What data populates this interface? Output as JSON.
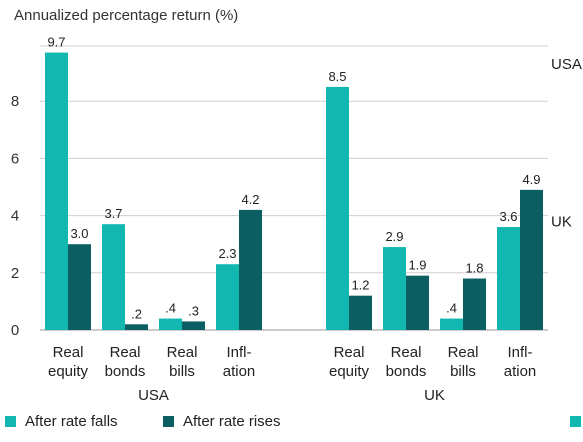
{
  "chart_data": {
    "type": "bar",
    "ylabel": "Annualized percentage return (%)",
    "ylim": [
      0,
      10
    ],
    "yticks": [
      0,
      2,
      4,
      6,
      8
    ],
    "grid": true,
    "legend_position": "bottom-left",
    "colors": {
      "falls": "#12B8B0",
      "rises": "#0B5F63"
    },
    "series": [
      {
        "name": "After rate falls",
        "key": "falls"
      },
      {
        "name": "After rate rises",
        "key": "rises"
      }
    ],
    "groups": [
      {
        "name": "USA",
        "categories": [
          {
            "lines": [
              "Real",
              "equity"
            ],
            "falls": 9.7,
            "rises": 3.0,
            "falls_label": "9.7",
            "rises_label": "3.0"
          },
          {
            "lines": [
              "Real",
              "bonds"
            ],
            "falls": 3.7,
            "rises": 0.2,
            "falls_label": "3.7",
            "rises_label": ".2"
          },
          {
            "lines": [
              "Real",
              "bills"
            ],
            "falls": 0.4,
            "rises": 0.3,
            "falls_label": ".4",
            "rises_label": ".3"
          },
          {
            "lines": [
              "Infl-",
              "ation"
            ],
            "falls": 2.3,
            "rises": 4.2,
            "falls_label": "2.3",
            "rises_label": "4.2"
          }
        ]
      },
      {
        "name": "UK",
        "categories": [
          {
            "lines": [
              "Real",
              "equity"
            ],
            "falls": 8.5,
            "rises": 1.2,
            "falls_label": "8.5",
            "rises_label": "1.2"
          },
          {
            "lines": [
              "Real",
              "bonds"
            ],
            "falls": 2.9,
            "rises": 1.9,
            "falls_label": "2.9",
            "rises_label": "1.9"
          },
          {
            "lines": [
              "Real",
              "bills"
            ],
            "falls": 0.4,
            "rises": 1.8,
            "falls_label": ".4",
            "rises_label": "1.8"
          },
          {
            "lines": [
              "Infl-",
              "ation"
            ],
            "falls": 3.6,
            "rises": 4.9,
            "falls_label": "3.6",
            "rises_label": "4.9"
          }
        ]
      }
    ],
    "side_labels": [
      {
        "text": "USA",
        "y": 9.3
      },
      {
        "text": "UK",
        "y": 3.8
      }
    ]
  }
}
